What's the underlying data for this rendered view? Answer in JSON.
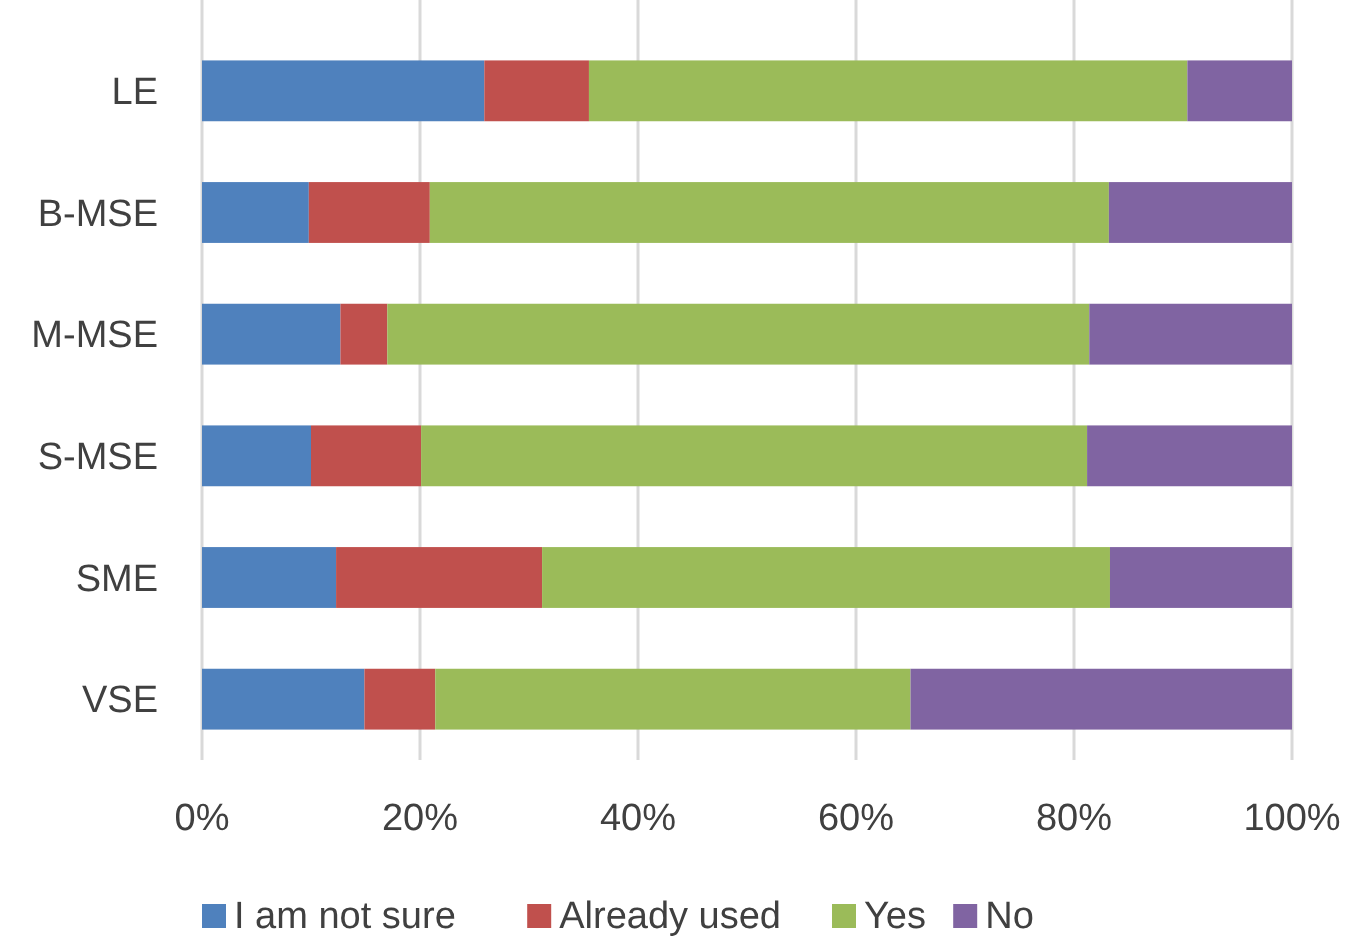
{
  "chart_data": {
    "type": "bar",
    "orientation": "horizontal",
    "stacked": true,
    "categories": [
      "LE",
      "B-MSE",
      "M-MSE",
      "S-MSE",
      "SME",
      "VSE"
    ],
    "series": [
      {
        "name": "I am not sure",
        "color": "#4f81bd",
        "values": [
          25.9,
          9.8,
          12.7,
          10.0,
          12.3,
          14.9
        ]
      },
      {
        "name": "Already used",
        "color": "#c0504d",
        "values": [
          9.6,
          11.1,
          4.3,
          10.1,
          18.9,
          6.5
        ]
      },
      {
        "name": "Yes",
        "color": "#9bbb59",
        "values": [
          54.9,
          62.3,
          64.4,
          61.1,
          52.1,
          43.6
        ]
      },
      {
        "name": "No",
        "color": "#8064a2",
        "values": [
          9.6,
          16.8,
          18.6,
          18.8,
          16.7,
          35.0
        ]
      }
    ],
    "xlim": [
      0,
      100
    ],
    "xticks": [
      {
        "value": 0,
        "label": "0%"
      },
      {
        "value": 20,
        "label": "20%"
      },
      {
        "value": 40,
        "label": "40%"
      },
      {
        "value": 60,
        "label": "60%"
      },
      {
        "value": 80,
        "label": "80%"
      },
      {
        "value": 100,
        "label": "100%"
      }
    ],
    "grid": "x",
    "legend": "bottom"
  }
}
